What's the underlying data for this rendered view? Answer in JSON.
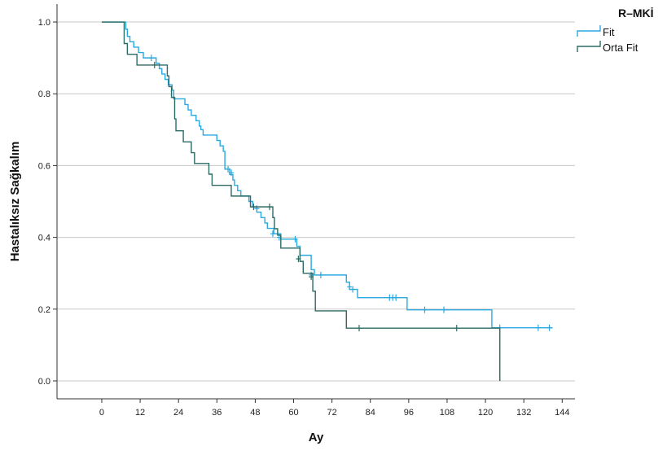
{
  "chart_data": {
    "type": "line",
    "subtype": "kaplan-meier",
    "title": "",
    "xlabel": "Ay",
    "ylabel": "Hastalıksız Sağkalım",
    "xlim": [
      -14,
      148
    ],
    "ylim": [
      -0.05,
      1.05
    ],
    "x_ticks": [
      0,
      12,
      24,
      36,
      48,
      60,
      72,
      84,
      96,
      108,
      120,
      132,
      144
    ],
    "y_ticks": [
      0.0,
      0.2,
      0.4,
      0.6,
      0.8,
      1.0
    ],
    "y_tick_labels": [
      "0.0",
      "0.2",
      "0.4",
      "0.6",
      "0.8",
      "1.0"
    ],
    "grid": "horizontal",
    "legend": {
      "title": "R–MKİ",
      "placement": "top-right"
    },
    "series": [
      {
        "name": "Fit",
        "color": "#2aa9e0",
        "steps": [
          [
            0,
            1.0
          ],
          [
            7.5,
            0.98
          ],
          [
            8,
            0.96
          ],
          [
            8.8,
            0.945
          ],
          [
            10,
            0.93
          ],
          [
            11.5,
            0.915
          ],
          [
            13,
            0.9
          ],
          [
            17,
            0.885
          ],
          [
            18,
            0.87
          ],
          [
            18.8,
            0.855
          ],
          [
            19.8,
            0.84
          ],
          [
            20.8,
            0.825
          ],
          [
            22,
            0.81
          ],
          [
            22.5,
            0.786
          ],
          [
            26,
            0.77
          ],
          [
            27,
            0.755
          ],
          [
            28,
            0.74
          ],
          [
            29.5,
            0.725
          ],
          [
            30.5,
            0.71
          ],
          [
            31,
            0.7
          ],
          [
            31.7,
            0.685
          ],
          [
            36,
            0.67
          ],
          [
            37,
            0.655
          ],
          [
            38,
            0.64
          ],
          [
            38.5,
            0.59
          ],
          [
            40,
            0.575
          ],
          [
            41,
            0.56
          ],
          [
            41.5,
            0.545
          ],
          [
            42.5,
            0.53
          ],
          [
            43.5,
            0.515
          ],
          [
            46,
            0.5
          ],
          [
            47.2,
            0.485
          ],
          [
            48.5,
            0.47
          ],
          [
            49.8,
            0.455
          ],
          [
            51,
            0.44
          ],
          [
            51.8,
            0.425
          ],
          [
            53.8,
            0.41
          ],
          [
            56,
            0.395
          ],
          [
            61,
            0.375
          ],
          [
            62,
            0.35
          ],
          [
            65.5,
            0.31
          ],
          [
            66.5,
            0.295
          ],
          [
            76.5,
            0.275
          ],
          [
            77.5,
            0.255
          ],
          [
            80,
            0.232
          ],
          [
            95.5,
            0.198
          ],
          [
            122,
            0.148
          ]
        ],
        "x_end": 141,
        "censored": [
          [
            15.5,
            0.9
          ],
          [
            39.5,
            0.59
          ],
          [
            40.5,
            0.58
          ],
          [
            48.5,
            0.48
          ],
          [
            53.5,
            0.41
          ],
          [
            55.5,
            0.4
          ],
          [
            60.5,
            0.395
          ],
          [
            65.5,
            0.295
          ],
          [
            68.5,
            0.295
          ],
          [
            77.5,
            0.262
          ],
          [
            78.5,
            0.255
          ],
          [
            90,
            0.232
          ],
          [
            91,
            0.232
          ],
          [
            92,
            0.232
          ],
          [
            101,
            0.198
          ],
          [
            107,
            0.198
          ],
          [
            124.5,
            0.148
          ],
          [
            136.5,
            0.148
          ],
          [
            140,
            0.148
          ]
        ]
      },
      {
        "name": "Orta Fit",
        "color": "#2c6b64",
        "steps": [
          [
            0,
            1.0
          ],
          [
            7,
            0.94
          ],
          [
            8,
            0.91
          ],
          [
            11,
            0.88
          ],
          [
            20.5,
            0.85
          ],
          [
            21,
            0.82
          ],
          [
            21.8,
            0.79
          ],
          [
            22.8,
            0.73
          ],
          [
            23.2,
            0.697
          ],
          [
            25.5,
            0.666
          ],
          [
            28,
            0.636
          ],
          [
            29,
            0.606
          ],
          [
            33.5,
            0.576
          ],
          [
            34.5,
            0.545
          ],
          [
            40.5,
            0.515
          ],
          [
            46.5,
            0.485
          ],
          [
            53.5,
            0.455
          ],
          [
            54,
            0.424
          ],
          [
            55,
            0.406
          ],
          [
            56,
            0.37
          ],
          [
            62,
            0.333
          ],
          [
            63,
            0.3
          ],
          [
            66,
            0.25
          ],
          [
            66.8,
            0.195
          ],
          [
            76.5,
            0.147
          ],
          [
            124.5,
            0.0
          ]
        ],
        "x_end": 124.5,
        "censored": [
          [
            16.5,
            0.88
          ],
          [
            47.5,
            0.485
          ],
          [
            52.5,
            0.485
          ],
          [
            61.5,
            0.34
          ],
          [
            65.5,
            0.29
          ],
          [
            80.5,
            0.147
          ],
          [
            111,
            0.147
          ]
        ]
      }
    ]
  }
}
